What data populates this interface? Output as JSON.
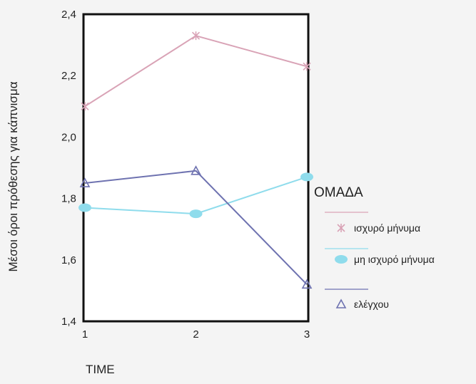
{
  "chart_data": {
    "type": "line",
    "title": "",
    "xlabel": "TIME",
    "ylabel": "Μέσοι όροι πρόθεσης για κάπνισμα",
    "x": [
      1,
      2,
      3
    ],
    "xticks": [
      "1",
      "2",
      "3"
    ],
    "ylim": [
      1.4,
      2.4
    ],
    "yticks": [
      "1,4",
      "1,6",
      "1,8",
      "2,0",
      "2,2",
      "2,4"
    ],
    "grid": false,
    "legend_title": "ΟΜΑΔΑ",
    "legend_position": "right",
    "series": [
      {
        "name": "ισχυρό μήνυμα",
        "values": [
          2.1,
          2.33,
          2.23
        ],
        "color": "#d9a3b6",
        "marker": "x"
      },
      {
        "name": "μη ισχυρό μήνυμα",
        "values": [
          1.77,
          1.75,
          1.87
        ],
        "color": "#8fdcec",
        "marker": "ellipse"
      },
      {
        "name": "ελέγχου",
        "values": [
          1.85,
          1.89,
          1.52
        ],
        "color": "#6e72b0",
        "marker": "triangle"
      }
    ]
  }
}
